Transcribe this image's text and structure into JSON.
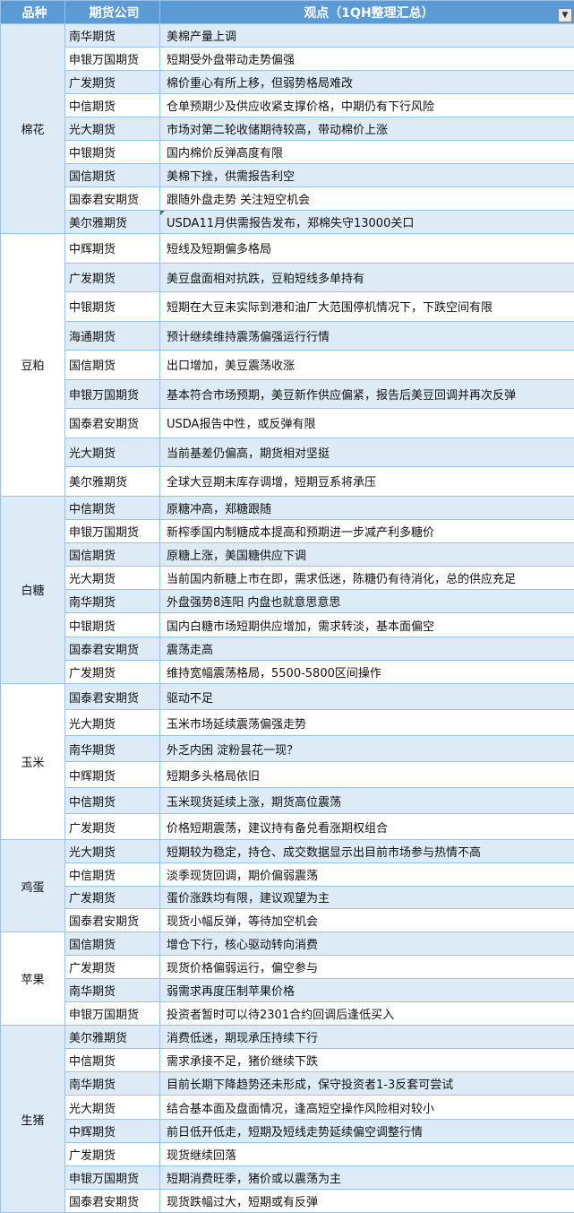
{
  "header": {
    "col_variety": "品种",
    "col_company": "期货公司",
    "col_view": "观点（1QH整理汇总）",
    "filter_icon": "filter-icon"
  },
  "colors": {
    "header_bg": "#5b9bd5",
    "stripe": "#ddebf7",
    "border": "#9bc2e6"
  },
  "groups": [
    {
      "variety": "棉花",
      "rows": [
        {
          "company": "南华期货",
          "view": "美棉产量上调"
        },
        {
          "company": "申银万国期货",
          "view": "短期受外盘带动走势偏强"
        },
        {
          "company": "广发期货",
          "view": "棉价重心有所上移，但弱势格局难改"
        },
        {
          "company": "中信期货",
          "view": "仓单预期少及供应收紧支撑价格，中期仍有下行风险"
        },
        {
          "company": "光大期货",
          "view": "市场对第二轮收储期待较高，带动棉价上涨"
        },
        {
          "company": "中银期货",
          "view": "国内棉价反弹高度有限"
        },
        {
          "company": "国信期货",
          "view": "美棉下挫，供需报告利空"
        },
        {
          "company": "国泰君安期货",
          "view": "跟随外盘走势 关注短空机会"
        },
        {
          "company": "美尔雅期货",
          "view": "USDA11月供需报告发布，郑棉失守13000关口",
          "comment": true
        }
      ]
    },
    {
      "variety": "豆粕",
      "rows": [
        {
          "company": "中辉期货",
          "view": "短线及短期偏多格局"
        },
        {
          "company": "广发期货",
          "view": "美豆盘面相对抗跌，豆粕短线多单持有"
        },
        {
          "company": "中银期货",
          "view": "短期在大豆未实际到港和油厂大范围停机情况下，下跌空间有限"
        },
        {
          "company": "海通期货",
          "view": "预计继续维持震荡偏强运行行情"
        },
        {
          "company": "国信期货",
          "view": "出口增加，美豆震荡收涨"
        },
        {
          "company": "申银万国期货",
          "view": "基本符合市场预期，美豆新作供应偏紧，报告后美豆回调并再次反弹"
        },
        {
          "company": "国泰君安期货",
          "view": "USDA报告中性，或反弹有限"
        },
        {
          "company": "光大期货",
          "view": "当前基差仍偏高，期货相对坚挺"
        },
        {
          "company": "美尔雅期货",
          "view": "全球大豆期末库存调增，短期豆系将承压"
        }
      ]
    },
    {
      "variety": "白糖",
      "rows": [
        {
          "company": "中信期货",
          "view": "原糖冲高，郑糖跟随"
        },
        {
          "company": "申银万国期货",
          "view": "新榨季国内制糖成本提高和预期进一步减产利多糖价"
        },
        {
          "company": "国信期货",
          "view": "原糖上涨，美国糖供应下调"
        },
        {
          "company": "光大期货",
          "view": "当前国内新糖上市在即，需求低迷，陈糖仍有待消化，总的供应充足"
        },
        {
          "company": "南华期货",
          "view": "外盘强势8连阳 内盘也就意思意思"
        },
        {
          "company": "中银期货",
          "view": "国内白糖市场短期供应增加，需求转淡，基本面偏空"
        },
        {
          "company": "国泰君安期货",
          "view": "震荡走高"
        },
        {
          "company": "广发期货",
          "view": "维持宽幅震荡格局，5500-5800区间操作"
        }
      ]
    },
    {
      "variety": "玉米",
      "rows": [
        {
          "company": "国泰君安期货",
          "view": "驱动不足"
        },
        {
          "company": "光大期货",
          "view": "玉米市场延续震荡偏强走势"
        },
        {
          "company": "南华期货",
          "view": "外乏内困 淀粉昙花一现？"
        },
        {
          "company": "中辉期货",
          "view": "短期多头格局依旧"
        },
        {
          "company": "中信期货",
          "view": "玉米现货延续上涨，期货高位震荡"
        },
        {
          "company": "广发期货",
          "view": "价格短期震荡，建议持有备兑看涨期权组合"
        }
      ]
    },
    {
      "variety": "鸡蛋",
      "rows": [
        {
          "company": "光大期货",
          "view": "短期较为稳定，持仓、成交数据显示出目前市场参与热情不高"
        },
        {
          "company": "中信期货",
          "view": "淡季现货回调，期价偏弱震荡"
        },
        {
          "company": "广发期货",
          "view": "蛋价涨跌均有限，建议观望为主"
        },
        {
          "company": "国泰君安期货",
          "view": "现货小幅反弹，等待加空机会"
        }
      ]
    },
    {
      "variety": "苹果",
      "rows": [
        {
          "company": "国信期货",
          "view": "增仓下行，核心驱动转向消费"
        },
        {
          "company": "广发期货",
          "view": "现货价格偏弱运行，偏空参与"
        },
        {
          "company": "南华期货",
          "view": "弱需求再度压制苹果价格"
        },
        {
          "company": "申银万国期货",
          "view": "投资者暂时可以待2301合约回调后逢低买入"
        }
      ]
    },
    {
      "variety": "生猪",
      "rows": [
        {
          "company": "美尔雅期货",
          "view": "消费低迷，期现承压持续下行"
        },
        {
          "company": "中信期货",
          "view": "需求承接不足，猪价继续下跌"
        },
        {
          "company": "南华期货",
          "view": "目前长期下降趋势还未形成，保守投资者1-3反套可尝试"
        },
        {
          "company": "光大期货",
          "view": "结合基本面及盘面情况，逢高短空操作风险相对较小"
        },
        {
          "company": "中辉期货",
          "view": "前日低开低走，短期及短线走势延续偏空调整行情"
        },
        {
          "company": "广发期货",
          "view": "现货继续回落"
        },
        {
          "company": "申银万国期货",
          "view": "短期消费旺季，猪价或以震荡为主"
        },
        {
          "company": "国泰君安期货",
          "view": "现货跌幅过大，短期或有反弹"
        }
      ]
    }
  ]
}
